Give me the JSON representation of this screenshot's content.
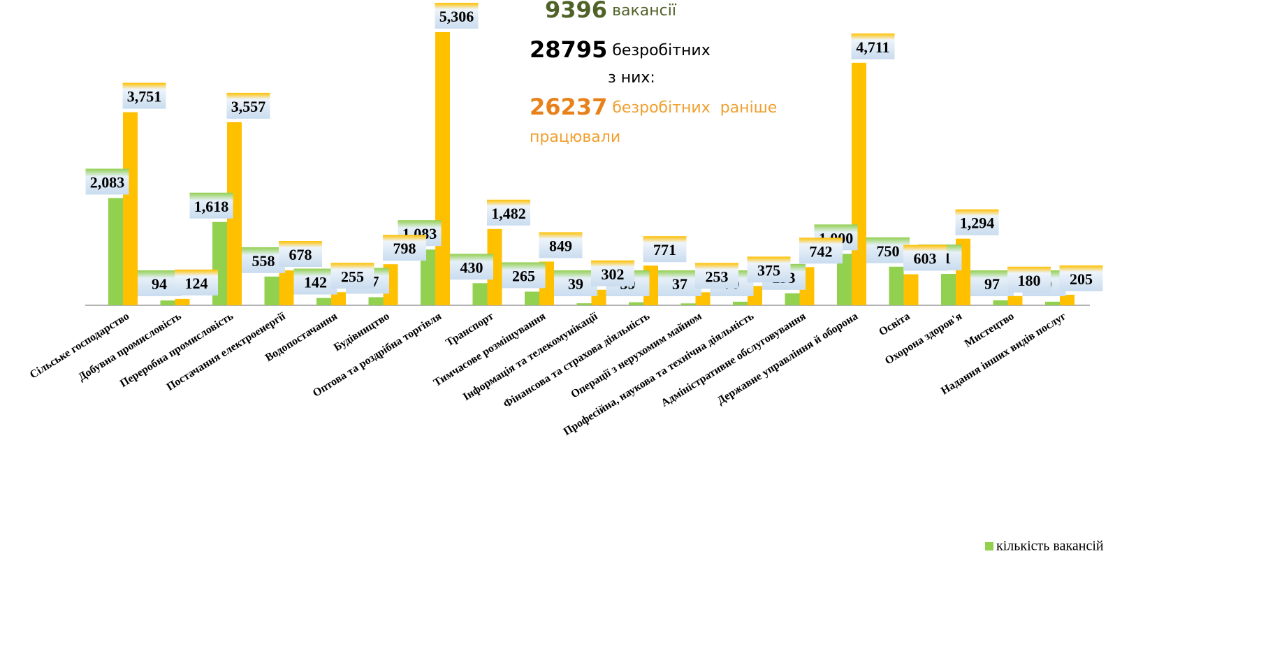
{
  "chart_data": {
    "type": "bar",
    "categories": [
      "Сільське господарство",
      "Добувна промисловість",
      "Переробна промисловість",
      "Постачання електроенергії",
      "Водопостачання",
      "Будівництво",
      "Оптова та роздрібна торгівля",
      "Транспорт",
      "Тимчасове розміщування",
      "Інформація та телекомунікації",
      "Фінансова та страхова діяльність",
      "Операції з нерухомим майном",
      "Професійна, наукова та технічна діяльність",
      "Адміністративне обслуговування",
      "Державне управління й оборона",
      "Освіта",
      "Охорона здоров'я",
      "Мистецтво",
      "Надання інших видів послуг"
    ],
    "series": [
      {
        "name": "кількість вакансій",
        "color": "#92d050",
        "values": [
          2083,
          94,
          1618,
          558,
          142,
          157,
          1083,
          430,
          265,
          39,
          59,
          37,
          70,
          233,
          1000,
          750,
          611,
          97,
          70
        ],
        "value_labels": [
          "2,083",
          "94",
          "1,618",
          "558",
          "142",
          "157",
          "1,083",
          "430",
          "265",
          "39",
          "59",
          "37",
          "70",
          "233",
          "1,000",
          "750",
          "611",
          "97",
          "70"
        ]
      },
      {
        "color": "#ffc000",
        "values": [
          3751,
          124,
          3557,
          678,
          255,
          798,
          5306,
          1482,
          849,
          302,
          771,
          253,
          375,
          742,
          4711,
          603,
          1294,
          180,
          205
        ],
        "value_labels": [
          "3,751",
          "124",
          "3,557",
          "678",
          "255",
          "798",
          "5,306",
          "1,482",
          "849",
          "302",
          "771",
          "253",
          "375",
          "742",
          "4,711",
          "603",
          "1,294",
          "180",
          "205"
        ]
      }
    ],
    "annotations": [
      {
        "value": "9396",
        "text": "вакансії",
        "color": "#4f6228",
        "text_color": "#4f6228"
      },
      {
        "value": "28795",
        "text": "безробітних",
        "color": "#000000",
        "text_color": "#000000"
      },
      {
        "text": "з них:",
        "text_color": "#000000"
      },
      {
        "value": "26237",
        "text": "безробітних  раніше",
        "color": "#e8811a",
        "text_color": "#f0a030"
      },
      {
        "text": "працювали",
        "text_color": "#f0a030"
      }
    ],
    "legend": "bottom-right"
  }
}
